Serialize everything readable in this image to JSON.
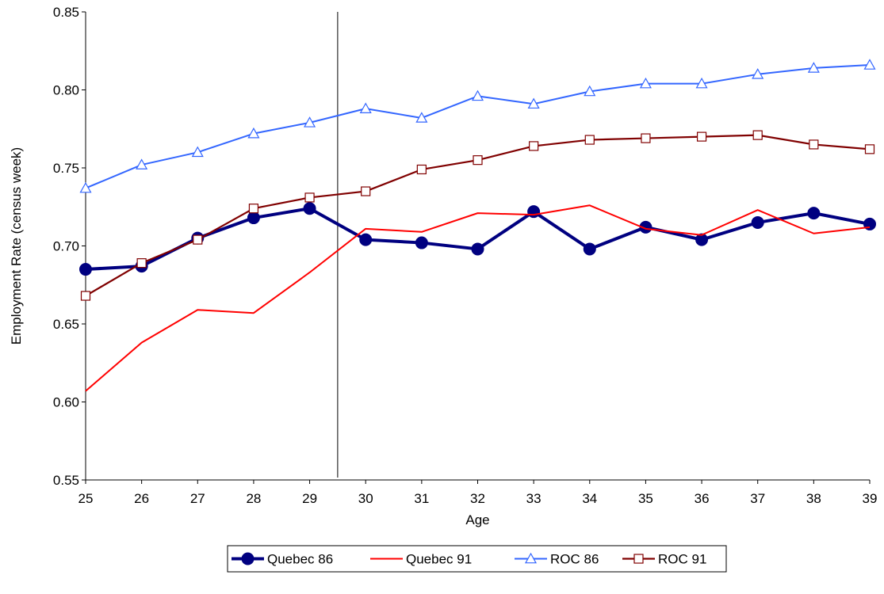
{
  "chart_data": {
    "type": "line",
    "xlabel": "Age",
    "ylabel": "Employment Rate (census week)",
    "x": [
      25,
      26,
      27,
      28,
      29,
      30,
      31,
      32,
      33,
      34,
      35,
      36,
      37,
      38,
      39
    ],
    "ylim": [
      0.55,
      0.85
    ],
    "yticks": [
      "0.55",
      "0.60",
      "0.65",
      "0.70",
      "0.75",
      "0.80",
      "0.85"
    ],
    "xticks": [
      "25",
      "26",
      "27",
      "28",
      "29",
      "30",
      "31",
      "32",
      "33",
      "34",
      "35",
      "36",
      "37",
      "38",
      "39"
    ],
    "reference_line_x": 29.5,
    "grid": false,
    "legend_position": "bottom",
    "series": [
      {
        "name": "Quebec 86",
        "color": "#000080",
        "marker": "circle",
        "values": [
          0.685,
          0.687,
          0.705,
          0.718,
          0.724,
          0.704,
          0.702,
          0.698,
          0.722,
          0.698,
          0.712,
          0.704,
          0.715,
          0.721,
          0.714
        ]
      },
      {
        "name": "Quebec 91",
        "color": "#ff0000",
        "marker": "none",
        "values": [
          0.607,
          0.638,
          0.659,
          0.657,
          0.683,
          0.711,
          0.709,
          0.721,
          0.72,
          0.726,
          0.711,
          0.707,
          0.723,
          0.708,
          0.712
        ]
      },
      {
        "name": "ROC 86",
        "color": "#3366ff",
        "marker": "triangle",
        "values": [
          0.737,
          0.752,
          0.76,
          0.772,
          0.779,
          0.788,
          0.782,
          0.796,
          0.791,
          0.799,
          0.804,
          0.804,
          0.81,
          0.814,
          0.816
        ]
      },
      {
        "name": "ROC 91",
        "color": "#800000",
        "marker": "square",
        "values": [
          0.668,
          0.689,
          0.704,
          0.724,
          0.731,
          0.735,
          0.749,
          0.755,
          0.764,
          0.768,
          0.769,
          0.77,
          0.771,
          0.765,
          0.762
        ]
      }
    ]
  }
}
